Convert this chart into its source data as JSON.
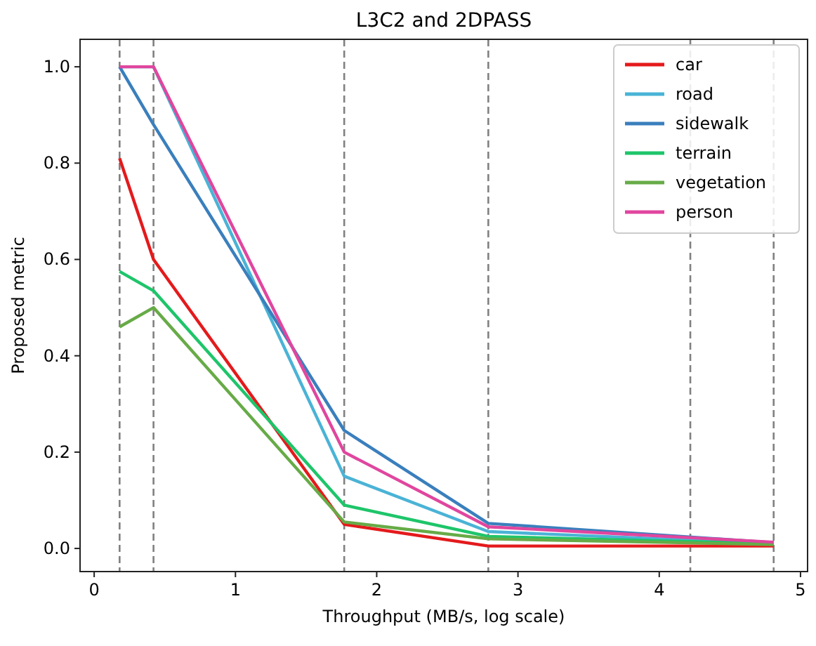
{
  "chart_data": {
    "type": "line",
    "title": "L3C2 and 2DPASS",
    "xlabel": "Throughput (MB/s, log scale)",
    "ylabel": "Proposed metric",
    "x": [
      0.18,
      0.42,
      1.77,
      2.79,
      4.81
    ],
    "series": [
      {
        "name": "car",
        "color": "#e41a1c",
        "values": [
          0.81,
          0.6,
          0.05,
          0.005,
          0.005
        ]
      },
      {
        "name": "road",
        "color": "#4ab3d6",
        "values": [
          1.0,
          1.0,
          0.15,
          0.035,
          0.01
        ]
      },
      {
        "name": "sidewalk",
        "color": "#3a7fbd",
        "values": [
          1.0,
          0.88,
          0.245,
          0.052,
          0.012
        ]
      },
      {
        "name": "terrain",
        "color": "#1ec56a",
        "values": [
          0.575,
          0.535,
          0.09,
          0.025,
          0.01
        ]
      },
      {
        "name": "vegetation",
        "color": "#67ab47",
        "values": [
          0.46,
          0.5,
          0.055,
          0.02,
          0.008
        ]
      },
      {
        "name": "person",
        "color": "#e0469e",
        "values": [
          1.0,
          1.0,
          0.2,
          0.045,
          0.013
        ]
      }
    ],
    "xlim": [
      -0.1,
      5.05
    ],
    "ylim": [
      -0.048,
      1.057
    ],
    "xticks": [
      0,
      1,
      2,
      3,
      4,
      5
    ],
    "yticks": [
      {
        "value": 0,
        "label": "0.0"
      },
      {
        "value": 0.2,
        "label": "0.2"
      },
      {
        "value": 0.4,
        "label": "0.4"
      },
      {
        "value": 0.6,
        "label": "0.6"
      },
      {
        "value": 0.8,
        "label": "0.8"
      },
      {
        "value": 1,
        "label": "1.0"
      }
    ],
    "ref_lines": [
      {
        "axis": "x",
        "value": 0.18,
        "color": "#808080",
        "line_style": "dashed"
      },
      {
        "axis": "x",
        "value": 0.42,
        "color": "#808080",
        "line_style": "dashed"
      },
      {
        "axis": "x",
        "value": 1.77,
        "color": "#808080",
        "line_style": "dashed"
      },
      {
        "axis": "x",
        "value": 2.79,
        "color": "#808080",
        "line_style": "dashed"
      },
      {
        "axis": "x",
        "value": 4.22,
        "color": "#808080",
        "line_style": "dashed"
      },
      {
        "axis": "x",
        "value": 4.81,
        "color": "#808080",
        "line_style": "dashed"
      }
    ],
    "legend": "top right",
    "grid": false,
    "marker": "none",
    "line_style": "solid"
  }
}
